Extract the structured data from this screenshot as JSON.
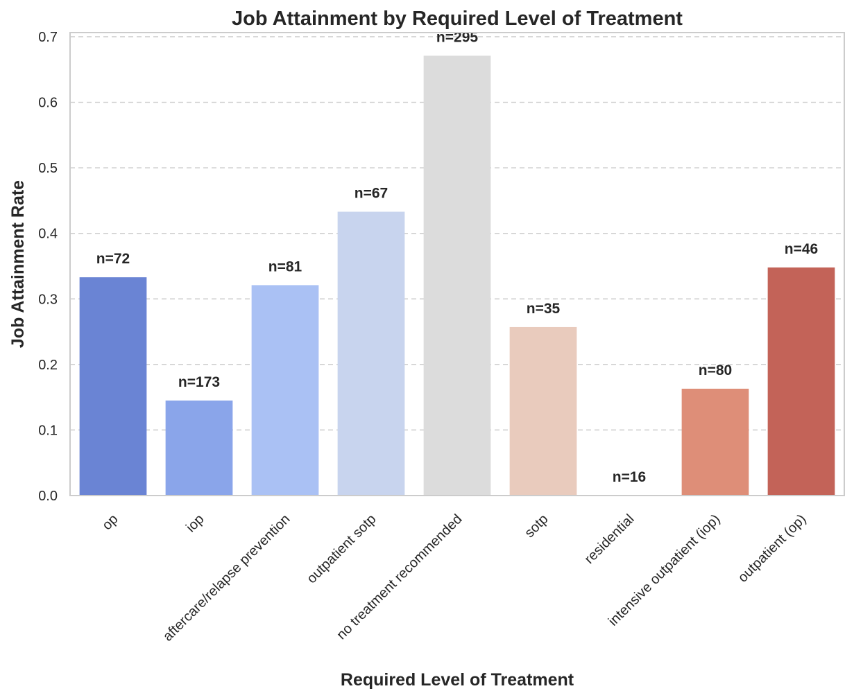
{
  "chart_data": {
    "type": "bar",
    "title": "Job Attainment by Required Level of Treatment",
    "xlabel": "Required Level of Treatment",
    "ylabel": "Job Attainment Rate",
    "ylim": [
      0,
      0.7
    ],
    "yticks": [
      "0.0",
      "0.1",
      "0.2",
      "0.3",
      "0.4",
      "0.5",
      "0.6",
      "0.7"
    ],
    "grid": "horizontal dashed",
    "categories": [
      "op",
      "iop",
      "aftercare/relapse prevention",
      "outpatient sotp",
      "no treatment recommended",
      "sotp",
      "residential",
      "intensive outpatient (iop)",
      "outpatient (op)"
    ],
    "values": [
      0.333,
      0.145,
      0.321,
      0.433,
      0.671,
      0.257,
      0.0,
      0.163,
      0.348
    ],
    "bar_labels": [
      "n=72",
      "n=173",
      "n=81",
      "n=67",
      "n=295",
      "n=35",
      "n=16",
      "n=80",
      "n=46"
    ],
    "colors": [
      "#6a84d4",
      "#8aa5ea",
      "#aac1f4",
      "#c8d4ee",
      "#dcdcdc",
      "#e9cbbd",
      "#f0b7a0",
      "#de8e78",
      "#c36358"
    ]
  }
}
